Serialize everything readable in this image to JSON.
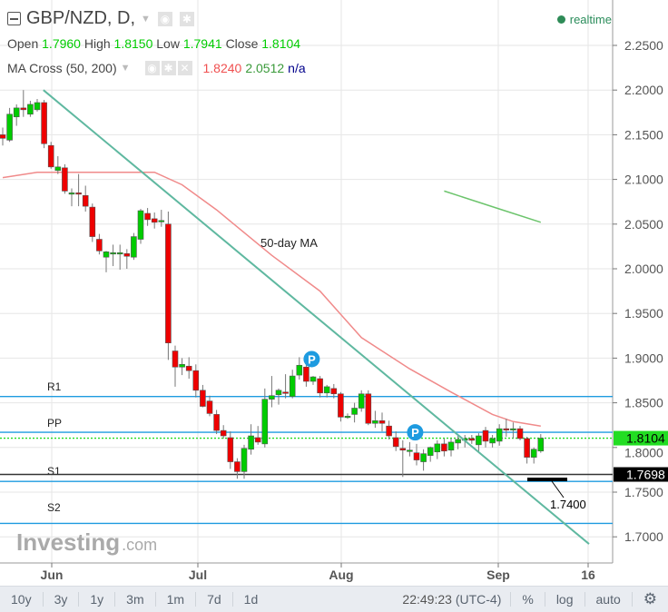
{
  "header": {
    "symbol": "GBP/NZD, D,",
    "realtime": "realtime",
    "ohlc": {
      "open_label": "Open",
      "open": "1.7960",
      "high_label": "High",
      "high": "1.8150",
      "low_label": "Low",
      "low": "1.7941",
      "close_label": "Close",
      "close": "1.8104"
    },
    "indicator": {
      "name": "MA Cross (50, 200)",
      "v1": "1.8240",
      "v2": "2.0512",
      "v3": "n/a"
    }
  },
  "colors": {
    "up": "#00cc00",
    "down": "#ee0000",
    "ma50": "#f08a8a",
    "ma200": "#6cc46c",
    "trendline": "#5fb8a0",
    "pivot": "#1e9be0",
    "grid": "#e6e6e6"
  },
  "chart_data": {
    "type": "candlestick",
    "x_labels": [
      "Jun",
      "Jul",
      "Aug",
      "Sep",
      "16"
    ],
    "y_ticks": [
      "2.2500",
      "2.2000",
      "2.1500",
      "2.1000",
      "2.0500",
      "2.0000",
      "1.9500",
      "1.9000",
      "1.8500",
      "1.8000",
      "1.7500",
      "1.7000"
    ],
    "ylim": [
      1.69,
      2.27
    ],
    "candles_ohlc": [
      [
        2.15,
        2.158,
        2.138,
        2.146
      ],
      [
        2.144,
        2.18,
        2.142,
        2.173
      ],
      [
        2.17,
        2.184,
        2.16,
        2.18
      ],
      [
        2.18,
        2.2,
        2.17,
        2.178
      ],
      [
        2.173,
        2.188,
        2.17,
        2.184
      ],
      [
        2.178,
        2.19,
        2.176,
        2.186
      ],
      [
        2.186,
        2.189,
        2.135,
        2.14
      ],
      [
        2.138,
        2.142,
        2.112,
        2.114
      ],
      [
        2.11,
        2.126,
        2.106,
        2.114
      ],
      [
        2.113,
        2.117,
        2.084,
        2.087
      ],
      [
        2.085,
        2.09,
        2.07,
        2.085
      ],
      [
        2.085,
        2.106,
        2.07,
        2.084
      ],
      [
        2.082,
        2.093,
        2.064,
        2.07
      ],
      [
        2.069,
        2.073,
        2.03,
        2.036
      ],
      [
        2.033,
        2.039,
        2.016,
        2.02
      ],
      [
        2.013,
        2.02,
        1.996,
        2.019
      ],
      [
        2.018,
        2.027,
        2.003,
        2.018
      ],
      [
        2.017,
        2.027,
        1.999,
        2.018
      ],
      [
        2.017,
        2.022,
        2.0,
        2.014
      ],
      [
        2.013,
        2.04,
        2.01,
        2.036
      ],
      [
        2.033,
        2.067,
        2.028,
        2.065
      ],
      [
        2.062,
        2.068,
        2.048,
        2.055
      ],
      [
        2.056,
        2.063,
        2.045,
        2.052
      ],
      [
        2.054,
        2.066,
        2.047,
        2.054
      ],
      [
        2.05,
        2.064,
        1.898,
        1.917
      ],
      [
        1.908,
        1.914,
        1.868,
        1.89
      ],
      [
        1.89,
        1.9,
        1.881,
        1.893
      ],
      [
        1.891,
        1.901,
        1.877,
        1.886
      ],
      [
        1.886,
        1.893,
        1.856,
        1.864
      ],
      [
        1.864,
        1.87,
        1.845,
        1.846
      ],
      [
        1.852,
        1.858,
        1.835,
        1.838
      ],
      [
        1.837,
        1.842,
        1.815,
        1.819
      ],
      [
        1.819,
        1.825,
        1.81,
        1.813
      ],
      [
        1.811,
        1.818,
        1.776,
        1.784
      ],
      [
        1.784,
        1.788,
        1.765,
        1.773
      ],
      [
        1.773,
        1.803,
        1.765,
        1.799
      ],
      [
        1.798,
        1.826,
        1.792,
        1.813
      ],
      [
        1.811,
        1.824,
        1.803,
        1.806
      ],
      [
        1.804,
        1.866,
        1.8,
        1.854
      ],
      [
        1.854,
        1.88,
        1.845,
        1.858
      ],
      [
        1.859,
        1.866,
        1.848,
        1.864
      ],
      [
        1.862,
        1.882,
        1.855,
        1.861
      ],
      [
        1.857,
        1.887,
        1.855,
        1.88
      ],
      [
        1.881,
        1.901,
        1.876,
        1.892
      ],
      [
        1.89,
        1.897,
        1.868,
        1.874
      ],
      [
        1.874,
        1.88,
        1.87,
        1.879
      ],
      [
        1.877,
        1.88,
        1.856,
        1.861
      ],
      [
        1.861,
        1.87,
        1.856,
        1.868
      ],
      [
        1.866,
        1.871,
        1.855,
        1.86
      ],
      [
        1.86,
        1.862,
        1.829,
        1.834
      ],
      [
        1.835,
        1.838,
        1.832,
        1.835
      ],
      [
        1.837,
        1.85,
        1.828,
        1.844
      ],
      [
        1.844,
        1.864,
        1.84,
        1.86
      ],
      [
        1.86,
        1.864,
        1.825,
        1.827
      ],
      [
        1.827,
        1.841,
        1.822,
        1.83
      ],
      [
        1.83,
        1.839,
        1.818,
        1.827
      ],
      [
        1.824,
        1.83,
        1.809,
        1.813
      ],
      [
        1.811,
        1.818,
        1.796,
        1.801
      ],
      [
        1.799,
        1.808,
        1.767,
        1.797
      ],
      [
        1.797,
        1.806,
        1.79,
        1.797
      ],
      [
        1.794,
        1.804,
        1.78,
        1.786
      ],
      [
        1.784,
        1.798,
        1.774,
        1.793
      ],
      [
        1.791,
        1.801,
        1.784,
        1.8
      ],
      [
        1.795,
        1.808,
        1.787,
        1.804
      ],
      [
        1.804,
        1.81,
        1.79,
        1.796
      ],
      [
        1.797,
        1.81,
        1.79,
        1.806
      ],
      [
        1.805,
        1.813,
        1.798,
        1.809
      ],
      [
        1.808,
        1.814,
        1.8,
        1.81
      ],
      [
        1.81,
        1.814,
        1.804,
        1.808
      ],
      [
        1.803,
        1.816,
        1.795,
        1.813
      ],
      [
        1.819,
        1.823,
        1.8,
        1.807
      ],
      [
        1.805,
        1.814,
        1.8,
        1.81
      ],
      [
        1.807,
        1.826,
        1.802,
        1.821
      ],
      [
        1.821,
        1.832,
        1.812,
        1.82
      ],
      [
        1.82,
        1.828,
        1.81,
        1.821
      ],
      [
        1.821,
        1.824,
        1.808,
        1.81
      ],
      [
        1.81,
        1.812,
        1.782,
        1.789
      ],
      [
        1.789,
        1.8,
        1.782,
        1.798
      ],
      [
        1.796,
        1.815,
        1.794,
        1.8104
      ]
    ],
    "ma50": [
      [
        0,
        2.102
      ],
      [
        5,
        2.108
      ],
      [
        22,
        2.108
      ],
      [
        26,
        2.094
      ],
      [
        31,
        2.066
      ],
      [
        39,
        2.015
      ],
      [
        46,
        1.975
      ],
      [
        52,
        1.923
      ],
      [
        59,
        1.888
      ],
      [
        65,
        1.862
      ],
      [
        71,
        1.837
      ],
      [
        74,
        1.829
      ],
      [
        78,
        1.824
      ]
    ],
    "ma200": [
      [
        64,
        2.087
      ],
      [
        72,
        2.067
      ],
      [
        78,
        2.052
      ]
    ],
    "ma50_label": "50-day MA",
    "trendline": [
      [
        3,
        2.2
      ],
      [
        85,
        1.692
      ]
    ],
    "pivots": [
      {
        "label": "R1",
        "value": 1.857
      },
      {
        "label": "PP",
        "value": 1.817
      },
      {
        "label": "S1",
        "value": 1.762
      },
      {
        "label": "S2",
        "value": 1.715
      }
    ],
    "support_line": 1.7698,
    "support_badge": "1.7698",
    "last_price": 1.8104,
    "last_badge": "1.8104",
    "target": {
      "label": "1.7400"
    },
    "markers": [
      {
        "index": 44,
        "price": 1.905,
        "label": "P"
      },
      {
        "index": 59,
        "price": 1.823,
        "label": "P"
      }
    ]
  },
  "watermark": {
    "brand": "Investing",
    "suffix": ".com"
  },
  "toolbar": {
    "ranges": [
      "10y",
      "3y",
      "1y",
      "3m",
      "1m",
      "7d",
      "1d"
    ],
    "time": "22:49:23",
    "tz": "(UTC-4)",
    "percent": "%",
    "log": "log",
    "auto": "auto"
  }
}
